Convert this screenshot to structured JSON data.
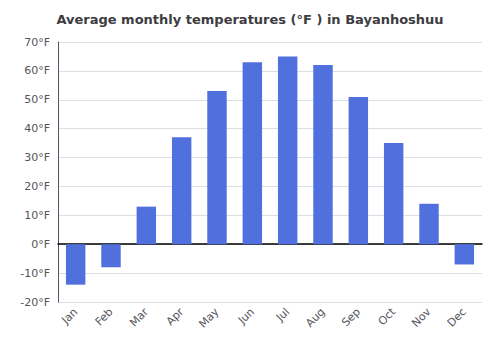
{
  "chart_data": {
    "type": "bar",
    "title": "Average monthly temperatures (°F ) in Bayanhoshuu",
    "categories": [
      "Jan",
      "Feb",
      "Mar",
      "Apr",
      "May",
      "Jun",
      "Jul",
      "Aug",
      "Sep",
      "Oct",
      "Nov",
      "Dec"
    ],
    "values": [
      -14,
      -8,
      13,
      37,
      53,
      63,
      65,
      62,
      51,
      35,
      14,
      -7
    ],
    "ylim": [
      -20,
      70
    ],
    "yticks": [
      {
        "value": -20,
        "label": "-20°F"
      },
      {
        "value": -10,
        "label": "-10°F"
      },
      {
        "value": 0,
        "label": "0°F"
      },
      {
        "value": 10,
        "label": "10°F"
      },
      {
        "value": 20,
        "label": "20°F"
      },
      {
        "value": 30,
        "label": "30°F"
      },
      {
        "value": 40,
        "label": "40°F"
      },
      {
        "value": 50,
        "label": "50°F"
      },
      {
        "value": 60,
        "label": "60°F"
      },
      {
        "value": 70,
        "label": "70°F"
      }
    ],
    "grid": true
  }
}
